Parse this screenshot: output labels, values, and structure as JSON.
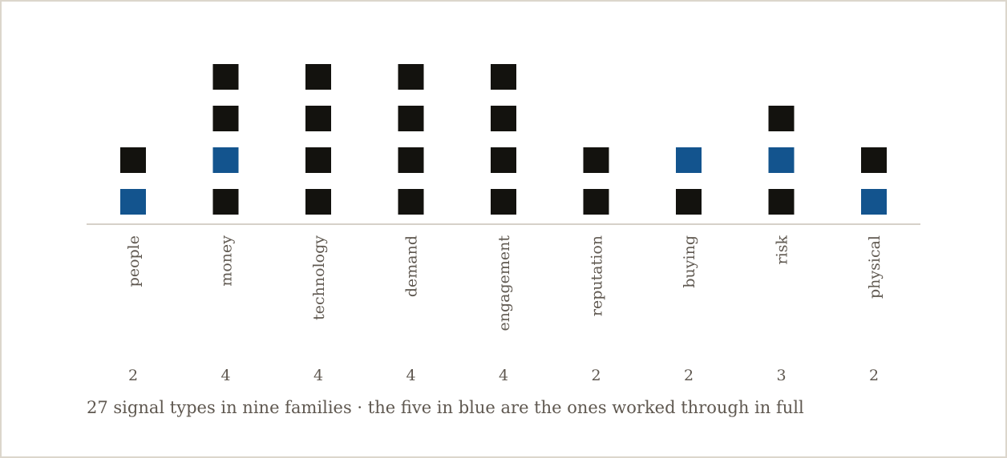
{
  "chart_data": {
    "type": "bar",
    "categories": [
      "people",
      "money",
      "technology",
      "demand",
      "engagement",
      "reputation",
      "buying",
      "risk",
      "physical"
    ],
    "values": [
      2,
      4,
      4,
      4,
      4,
      2,
      2,
      3,
      2
    ],
    "highlighted_positions": [
      [
        1
      ],
      [
        2
      ],
      [],
      [],
      [],
      [],
      [
        2
      ],
      [
        2
      ],
      [
        1
      ]
    ],
    "caption": "27 signal types in nine families · the five in blue are the ones worked through in full",
    "colors": {
      "default": "#13120e",
      "highlight": "#13548e",
      "axis": "#c9c2b7"
    },
    "ylim": [
      0,
      4
    ]
  }
}
